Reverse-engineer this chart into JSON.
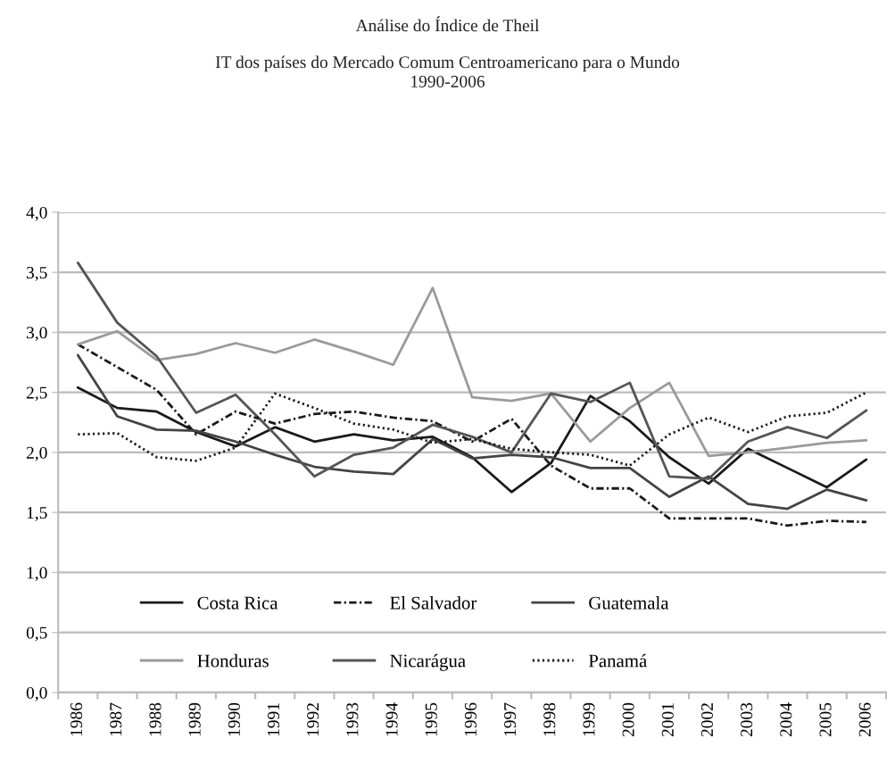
{
  "chart_data": {
    "type": "line",
    "title": "Análise do Índice de Theil",
    "subtitle": "IT dos países do Mercado Comum Centroamericano para o Mundo\n1990-2006",
    "categories": [
      "1986",
      "1987",
      "1988",
      "1989",
      "1990",
      "1991",
      "1992",
      "1993",
      "1994",
      "1995",
      "1996",
      "1997",
      "1998",
      "1999",
      "2000",
      "2001",
      "2002",
      "2003",
      "2004",
      "2005",
      "2006"
    ],
    "series": [
      {
        "name": "Costa Rica",
        "color": "#1a1a1a",
        "line_style": "solid",
        "values": [
          2.54,
          2.37,
          2.34,
          2.17,
          2.05,
          2.21,
          2.09,
          2.15,
          2.1,
          2.13,
          1.96,
          1.67,
          1.91,
          2.47,
          2.26,
          1.96,
          1.74,
          2.03,
          1.87,
          1.71,
          1.94
        ]
      },
      {
        "name": "El Salvador",
        "color": "#1a1a1a",
        "line_style": "dashdot",
        "values": [
          2.9,
          2.71,
          2.52,
          2.15,
          2.34,
          2.24,
          2.32,
          2.34,
          2.29,
          2.26,
          2.09,
          2.28,
          1.89,
          1.7,
          1.7,
          1.45,
          1.45,
          1.45,
          1.39,
          1.43,
          1.42
        ]
      },
      {
        "name": "Guatemala",
        "color": "#444444",
        "line_style": "solid",
        "values": [
          2.81,
          2.3,
          2.19,
          2.18,
          2.09,
          1.98,
          1.88,
          1.84,
          1.82,
          2.11,
          1.95,
          1.98,
          1.96,
          1.87,
          1.87,
          1.63,
          1.8,
          1.57,
          1.53,
          1.69,
          1.6
        ]
      },
      {
        "name": "Honduras",
        "color": "#9a9a9a",
        "line_style": "solid",
        "values": [
          2.9,
          3.01,
          2.77,
          2.82,
          2.91,
          2.83,
          2.94,
          2.84,
          2.73,
          3.37,
          2.46,
          2.43,
          2.49,
          2.09,
          2.37,
          2.58,
          1.97,
          2.0,
          2.04,
          2.08,
          2.1
        ]
      },
      {
        "name": "Nicarágua",
        "color": "#555555",
        "line_style": "solid",
        "values": [
          3.58,
          3.08,
          2.8,
          2.33,
          2.48,
          2.15,
          1.8,
          1.98,
          2.04,
          2.23,
          2.13,
          2.0,
          2.49,
          2.42,
          2.58,
          1.8,
          1.78,
          2.09,
          2.21,
          2.12,
          2.35
        ]
      },
      {
        "name": "Panamá",
        "color": "#1a1a1a",
        "line_style": "dotted",
        "values": [
          2.15,
          2.16,
          1.96,
          1.93,
          2.04,
          2.49,
          2.37,
          2.24,
          2.19,
          2.08,
          2.11,
          2.03,
          2.0,
          1.98,
          1.89,
          2.15,
          2.29,
          2.17,
          2.3,
          2.33,
          2.5
        ]
      }
    ],
    "ylim": [
      0,
      4
    ],
    "yticks": [
      {
        "value": 0,
        "label": "0,0"
      },
      {
        "value": 0.5,
        "label": "0,5"
      },
      {
        "value": 1,
        "label": "1,0"
      },
      {
        "value": 1.5,
        "label": "1,5"
      },
      {
        "value": 2,
        "label": "2,0"
      },
      {
        "value": 2.5,
        "label": "2,5"
      },
      {
        "value": 3,
        "label": "3,0"
      },
      {
        "value": 3.5,
        "label": "3,5"
      },
      {
        "value": 4,
        "label": "4,0"
      }
    ],
    "grid": "y",
    "legend": "bottom",
    "marker": "none"
  }
}
